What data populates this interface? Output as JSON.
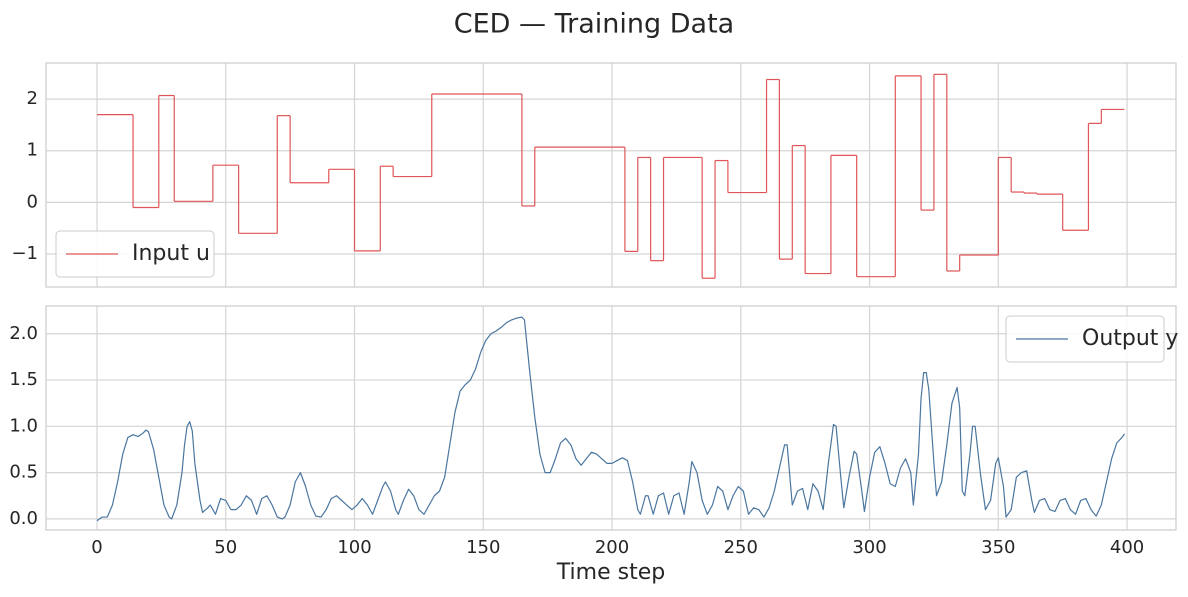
{
  "title": "CED — Training Data",
  "chart_data": [
    {
      "type": "line",
      "drawstyle": "steps-post",
      "grid": true,
      "legend": "lower left",
      "xlim": [
        -19.8,
        419
      ],
      "ylim": [
        -1.64,
        2.7
      ],
      "xticks": [
        0,
        50,
        100,
        150,
        200,
        250,
        300,
        350,
        400
      ],
      "show_xtick_labels": false,
      "yticks": [
        {
          "value": -1,
          "label": "−1"
        },
        0,
        1,
        2
      ],
      "x": [
        0,
        14,
        24,
        30,
        45,
        55,
        70,
        75,
        90,
        100,
        110,
        115,
        130,
        165,
        170,
        205,
        210,
        215,
        220,
        235,
        240,
        245,
        260,
        265,
        270,
        275,
        285,
        295,
        310,
        320,
        325,
        330,
        335,
        350,
        355,
        360,
        365,
        375,
        385,
        390,
        399
      ],
      "series": [
        {
          "name": "Input u",
          "color": "#e05557",
          "values": [
            1.7,
            -0.1,
            2.07,
            0.02,
            0.72,
            -0.6,
            1.68,
            0.38,
            0.64,
            -0.94,
            0.7,
            0.5,
            2.1,
            -0.07,
            1.07,
            -0.95,
            0.87,
            -1.13,
            0.87,
            -1.47,
            0.81,
            0.19,
            2.38,
            -1.1,
            1.1,
            -1.38,
            0.91,
            -1.44,
            2.45,
            -0.15,
            2.48,
            -1.33,
            -1.02,
            0.87,
            0.2,
            0.18,
            0.16,
            -0.54,
            1.53,
            1.8,
            1.8
          ]
        }
      ]
    },
    {
      "type": "line",
      "grid": true,
      "legend": "upper right",
      "xlabel": "Time step",
      "xlim": [
        -19.8,
        419
      ],
      "ylim": [
        -0.12,
        2.3
      ],
      "xticks": [
        0,
        50,
        100,
        150,
        200,
        250,
        300,
        350,
        400
      ],
      "show_xtick_labels": true,
      "yticks": [
        {
          "value": 0,
          "label": "0.0"
        },
        {
          "value": 0.5,
          "label": "0.5"
        },
        {
          "value": 1,
          "label": "1.0"
        },
        {
          "value": 1.5,
          "label": "1.5"
        },
        {
          "value": 2,
          "label": "2.0"
        }
      ],
      "x": [
        0,
        2,
        4,
        6,
        8,
        10,
        12,
        14,
        16,
        18,
        19,
        20,
        22,
        24,
        26,
        28,
        29,
        31,
        33,
        34,
        35,
        36,
        37,
        38,
        40,
        41,
        43,
        44,
        46,
        48,
        50,
        52,
        54,
        56,
        58,
        60,
        62,
        64,
        66,
        68,
        70,
        72,
        73,
        75,
        77,
        79,
        81,
        83,
        85,
        87,
        89,
        91,
        93,
        95,
        97,
        99,
        101,
        103,
        105,
        107,
        109,
        111,
        112,
        114,
        116,
        117,
        119,
        121,
        123,
        125,
        127,
        129,
        131,
        133,
        135,
        137,
        139,
        141,
        143,
        145,
        147,
        149,
        151,
        153,
        155,
        157,
        159,
        161,
        163,
        165,
        166,
        168,
        170,
        172,
        174,
        176,
        178,
        180,
        182,
        184,
        186,
        188,
        190,
        192,
        194,
        196,
        198,
        200,
        202,
        204,
        206,
        208,
        210,
        211,
        213,
        214,
        216,
        218,
        220,
        222,
        224,
        226,
        228,
        230,
        231,
        233,
        235,
        237,
        239,
        241,
        243,
        245,
        247,
        249,
        251,
        253,
        255,
        257,
        259,
        261,
        263,
        265,
        267,
        268,
        270,
        272,
        274,
        276,
        278,
        280,
        282,
        284,
        286,
        287,
        289,
        290,
        292,
        294,
        295,
        297,
        298,
        300,
        302,
        304,
        306,
        308,
        310,
        312,
        314,
        316,
        317,
        319,
        320,
        321,
        322,
        323,
        325,
        326,
        328,
        330,
        332,
        334,
        335,
        336,
        337,
        339,
        340,
        341,
        343,
        345,
        347,
        349,
        350,
        352,
        353,
        355,
        357,
        359,
        361,
        363,
        364,
        366,
        368,
        370,
        372,
        374,
        376,
        378,
        380,
        382,
        384,
        386,
        388,
        390,
        392,
        394,
        396,
        398,
        399
      ],
      "series": [
        {
          "name": "Output y",
          "color": "#4a76a0",
          "values": [
            -0.02,
            0.02,
            0.02,
            0.15,
            0.4,
            0.7,
            0.88,
            0.91,
            0.89,
            0.93,
            0.96,
            0.94,
            0.75,
            0.45,
            0.15,
            0.02,
            0.0,
            0.15,
            0.5,
            0.8,
            1.0,
            1.05,
            0.95,
            0.6,
            0.2,
            0.07,
            0.12,
            0.15,
            0.05,
            0.22,
            0.2,
            0.1,
            0.1,
            0.15,
            0.25,
            0.2,
            0.05,
            0.22,
            0.25,
            0.15,
            0.02,
            0.0,
            0.02,
            0.15,
            0.4,
            0.5,
            0.35,
            0.15,
            0.03,
            0.02,
            0.1,
            0.22,
            0.25,
            0.2,
            0.15,
            0.1,
            0.15,
            0.22,
            0.15,
            0.05,
            0.2,
            0.35,
            0.4,
            0.3,
            0.1,
            0.05,
            0.2,
            0.32,
            0.25,
            0.1,
            0.05,
            0.15,
            0.25,
            0.3,
            0.45,
            0.8,
            1.15,
            1.38,
            1.45,
            1.5,
            1.62,
            1.8,
            1.93,
            2.0,
            2.03,
            2.07,
            2.12,
            2.15,
            2.17,
            2.18,
            2.15,
            1.6,
            1.1,
            0.7,
            0.5,
            0.5,
            0.65,
            0.82,
            0.87,
            0.8,
            0.65,
            0.58,
            0.65,
            0.72,
            0.7,
            0.65,
            0.6,
            0.6,
            0.63,
            0.66,
            0.63,
            0.4,
            0.1,
            0.05,
            0.25,
            0.25,
            0.05,
            0.25,
            0.28,
            0.05,
            0.25,
            0.28,
            0.05,
            0.4,
            0.62,
            0.5,
            0.2,
            0.05,
            0.15,
            0.35,
            0.3,
            0.1,
            0.25,
            0.35,
            0.3,
            0.05,
            0.12,
            0.1,
            0.02,
            0.12,
            0.3,
            0.55,
            0.8,
            0.8,
            0.15,
            0.3,
            0.33,
            0.1,
            0.38,
            0.3,
            0.1,
            0.6,
            1.02,
            1.0,
            0.4,
            0.12,
            0.45,
            0.73,
            0.7,
            0.3,
            0.08,
            0.45,
            0.72,
            0.78,
            0.6,
            0.38,
            0.35,
            0.55,
            0.65,
            0.5,
            0.15,
            0.7,
            1.3,
            1.58,
            1.58,
            1.4,
            0.6,
            0.25,
            0.4,
            0.8,
            1.25,
            1.42,
            1.2,
            0.3,
            0.25,
            0.7,
            1.0,
            1.0,
            0.5,
            0.1,
            0.2,
            0.6,
            0.66,
            0.35,
            0.02,
            0.1,
            0.45,
            0.5,
            0.52,
            0.2,
            0.07,
            0.2,
            0.22,
            0.1,
            0.08,
            0.2,
            0.22,
            0.1,
            0.05,
            0.2,
            0.22,
            0.1,
            0.03,
            0.15,
            0.4,
            0.65,
            0.82,
            0.88,
            0.92
          ]
        }
      ]
    }
  ]
}
